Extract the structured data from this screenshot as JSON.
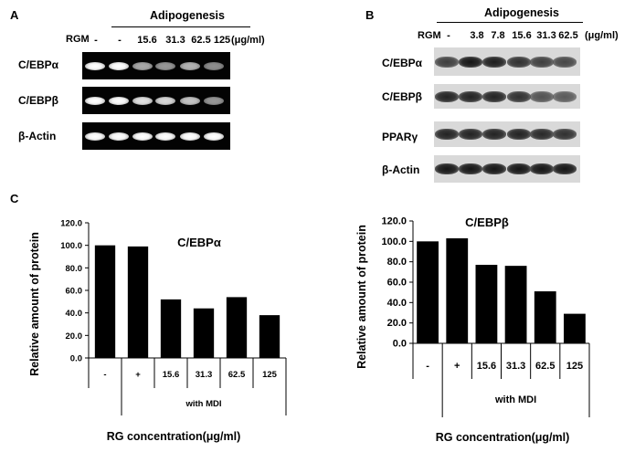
{
  "panel_a": {
    "letter": "A",
    "header": "Adipogenesis",
    "rgm_label": "RGM",
    "lanes": [
      "-",
      "-",
      "15.6",
      "31.3",
      "62.5",
      "125"
    ],
    "unit": "(μg/ml)",
    "rows": [
      {
        "label": "C/EBPα",
        "intensity": [
          1.0,
          1.0,
          0.55,
          0.45,
          0.6,
          0.4
        ]
      },
      {
        "label": "C/EBPβ",
        "intensity": [
          1.0,
          1.0,
          0.85,
          0.8,
          0.7,
          0.45
        ]
      },
      {
        "label": "β-Actin",
        "intensity": [
          1.0,
          1.0,
          1.0,
          1.0,
          1.0,
          1.0
        ]
      }
    ]
  },
  "panel_b": {
    "letter": "B",
    "header": "Adipogenesis",
    "rgm_label": "RGM",
    "lanes": [
      "-",
      "3.8",
      "7.8",
      "15.6",
      "31.3",
      "62.5"
    ],
    "unit": "(μg/ml)",
    "rows": [
      {
        "label": "C/EBPα",
        "intensity": [
          0.7,
          1.0,
          0.95,
          0.8,
          0.7,
          0.65
        ]
      },
      {
        "label": "C/EBPβ",
        "intensity": [
          0.9,
          0.9,
          0.9,
          0.8,
          0.55,
          0.5
        ]
      },
      {
        "label": "PPARγ",
        "intensity": [
          0.9,
          0.9,
          0.9,
          0.9,
          0.85,
          0.8
        ]
      },
      {
        "label": "β-Actin",
        "intensity": [
          1.0,
          1.0,
          1.0,
          1.0,
          1.0,
          1.0
        ]
      }
    ]
  },
  "panel_c": {
    "letter": "C"
  },
  "chart_data": [
    {
      "type": "bar",
      "title": "C/EBPα",
      "categories": [
        "-",
        "+",
        "15.6",
        "31.3",
        "62.5",
        "125"
      ],
      "values": [
        100,
        99,
        52,
        44,
        54,
        38
      ],
      "ylabel": "Relative amount of protein",
      "xlabel": "RG concentration(μg/ml)",
      "group_label": "with MDI",
      "ylim": [
        0,
        120
      ],
      "yticks": [
        "0.0",
        "20.0",
        "40.0",
        "60.0",
        "80.0",
        "100.0",
        "120.0"
      ],
      "grid": false,
      "bar_color": "#000000"
    },
    {
      "type": "bar",
      "title": "C/EBPβ",
      "categories": [
        "-",
        "+",
        "15.6",
        "31.3",
        "62.5",
        "125"
      ],
      "values": [
        100,
        103,
        77,
        76,
        51,
        29
      ],
      "ylabel": "Relative amount of protein",
      "xlabel": "RG concentration(μg/ml)",
      "group_label": "with MDI",
      "ylim": [
        0,
        120
      ],
      "yticks": [
        "0.0",
        "20.0",
        "40.0",
        "60.0",
        "80.0",
        "100.0",
        "120.0"
      ],
      "grid": false,
      "bar_color": "#000000"
    }
  ]
}
